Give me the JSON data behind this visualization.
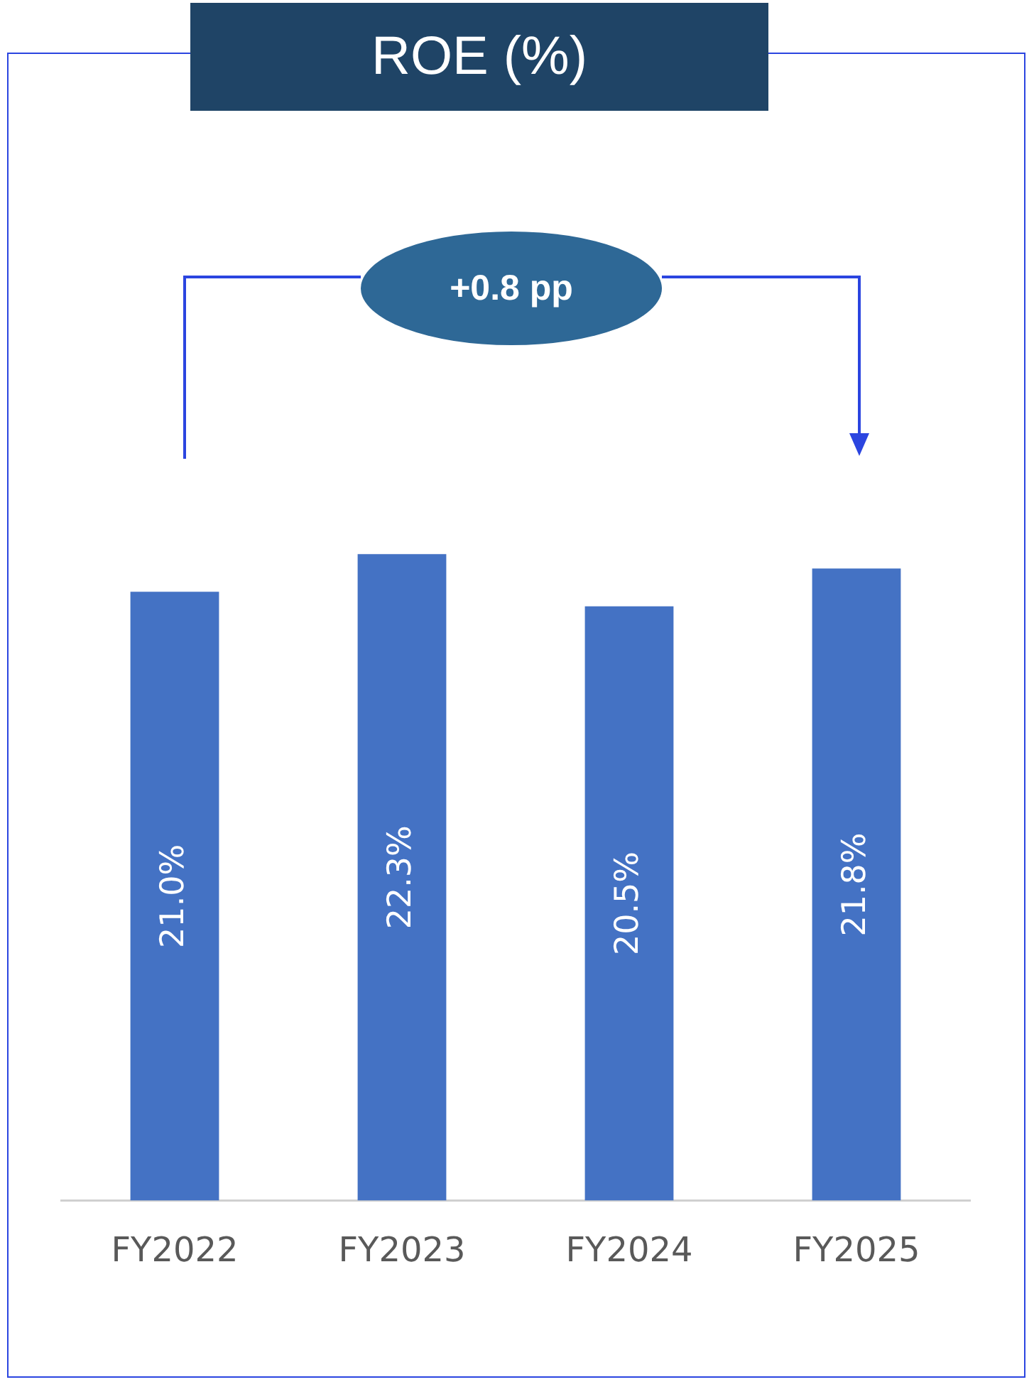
{
  "chart_data": {
    "type": "bar",
    "title": "ROE (%)",
    "categories": [
      "FY2022",
      "FY2023",
      "FY2024",
      "FY2025"
    ],
    "values": [
      21.0,
      22.3,
      20.5,
      21.8
    ],
    "value_labels": [
      "21.0%",
      "22.3%",
      "20.5%",
      "21.8%"
    ],
    "color": "#4472c4",
    "annotations": [
      "+0.8 pp"
    ],
    "grid": false,
    "legend": false,
    "tick_labels": "x"
  }
}
